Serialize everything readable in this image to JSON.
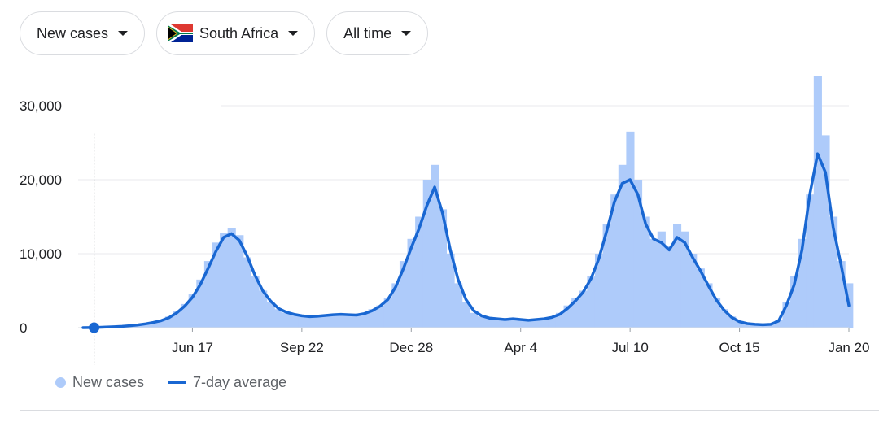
{
  "filters": {
    "metric": "New cases",
    "location": "South Africa",
    "range": "All time",
    "location_flag_icon": "south-africa-flag-icon"
  },
  "colors": {
    "bars": "#aecbfa",
    "average_line": "#1967d2",
    "grid": "#e8eaed",
    "text": "#202124",
    "muted": "#5f6368"
  },
  "legend": {
    "new_cases": "New cases",
    "average": "7-day average"
  },
  "chart_data": {
    "type": "bar",
    "title": "",
    "xlabel": "",
    "ylabel": "",
    "ylim": [
      0,
      35000
    ],
    "yticks": [
      {
        "value": 0,
        "label": "0"
      },
      {
        "value": 10000,
        "label": "10,000"
      },
      {
        "value": 20000,
        "label": "20,000"
      },
      {
        "value": 30000,
        "label": "30,000"
      }
    ],
    "xticks": [
      "Jun 17",
      "Sep 22",
      "Dec 28",
      "Apr 4",
      "Jul 10",
      "Oct 15",
      "Jan 20"
    ],
    "xtick_week_index": [
      14,
      28,
      42,
      56,
      70,
      84,
      98
    ],
    "weeks": 99,
    "series": [
      {
        "name": "New cases",
        "kind": "bar",
        "weekly_values": [
          0,
          0,
          20,
          60,
          100,
          150,
          250,
          350,
          500,
          700,
          1000,
          1500,
          2200,
          3200,
          4500,
          6500,
          9000,
          11500,
          12800,
          13500,
          12500,
          9500,
          7000,
          5000,
          3500,
          2500,
          2000,
          1800,
          1600,
          1500,
          1600,
          1700,
          1800,
          1900,
          1800,
          1700,
          2000,
          2500,
          3000,
          4000,
          6000,
          9000,
          12000,
          15000,
          20000,
          22000,
          16000,
          10000,
          6000,
          3500,
          2000,
          1500,
          1300,
          1200,
          1100,
          1300,
          1200,
          1100,
          1200,
          1300,
          1500,
          2000,
          3000,
          4000,
          5000,
          7000,
          10000,
          14000,
          18000,
          22000,
          26500,
          20000,
          15000,
          12000,
          13000,
          11000,
          14000,
          13000,
          10000,
          8000,
          6000,
          4000,
          2500,
          1500,
          900,
          600,
          500,
          400,
          500,
          1000,
          3500,
          7000,
          12000,
          18000,
          34000,
          26000,
          15000,
          9000,
          6000
        ]
      },
      {
        "name": "7-day average",
        "kind": "line",
        "weekly_values": [
          0,
          10,
          40,
          80,
          120,
          180,
          260,
          370,
          520,
          700,
          950,
          1350,
          2000,
          2900,
          4100,
          5800,
          8000,
          10300,
          12200,
          12700,
          11800,
          9700,
          7100,
          5000,
          3600,
          2600,
          2100,
          1800,
          1600,
          1500,
          1550,
          1650,
          1750,
          1800,
          1750,
          1700,
          1900,
          2300,
          2900,
          3800,
          5500,
          8000,
          10800,
          13400,
          16500,
          19000,
          15500,
          10500,
          6500,
          3800,
          2300,
          1600,
          1300,
          1200,
          1100,
          1200,
          1100,
          1000,
          1100,
          1200,
          1400,
          1800,
          2600,
          3600,
          4800,
          6600,
          9300,
          13000,
          17000,
          19500,
          20000,
          18000,
          14000,
          12000,
          11500,
          10500,
          12200,
          11500,
          9500,
          7700,
          5700,
          3800,
          2400,
          1400,
          800,
          550,
          450,
          400,
          450,
          900,
          3000,
          5800,
          10500,
          18000,
          23500,
          21000,
          13500,
          8500,
          3000
        ]
      }
    ],
    "grid": true,
    "legend_position": "bottom-left",
    "cursor_marker": {
      "week_index": 1,
      "value": 0
    }
  }
}
